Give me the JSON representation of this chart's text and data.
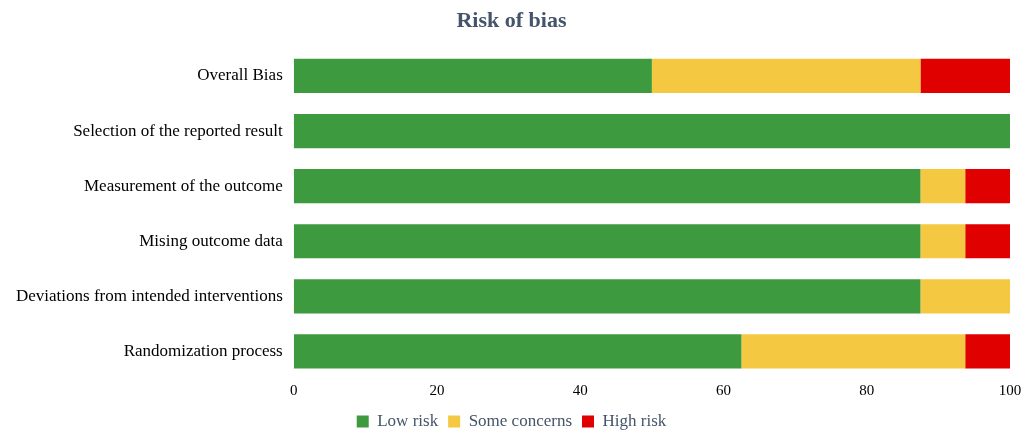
{
  "chart_data": {
    "type": "bar",
    "orientation": "horizontal",
    "stacked": true,
    "title": "Risk of bias",
    "categories": [
      "Overall Bias",
      "Selection of the reported result",
      "Measurement of the outcome",
      "Mising outcome data",
      "Deviations from intended interventions",
      "Randomization process"
    ],
    "series": [
      {
        "name": "Low risk",
        "color": "#3e9a3e",
        "values": [
          50,
          100,
          87.5,
          87.5,
          87.5,
          62.5
        ]
      },
      {
        "name": "Some concerns",
        "color": "#f5c842",
        "values": [
          37.5,
          0,
          6.25,
          6.25,
          12.5,
          31.25
        ]
      },
      {
        "name": "High risk",
        "color": "#e00000",
        "values": [
          12.5,
          0,
          6.25,
          6.25,
          0,
          6.25
        ]
      }
    ],
    "xlim": [
      0,
      100
    ],
    "xticks": [
      0,
      20,
      40,
      60,
      80,
      100
    ],
    "grid": false,
    "legend": "bottom"
  }
}
